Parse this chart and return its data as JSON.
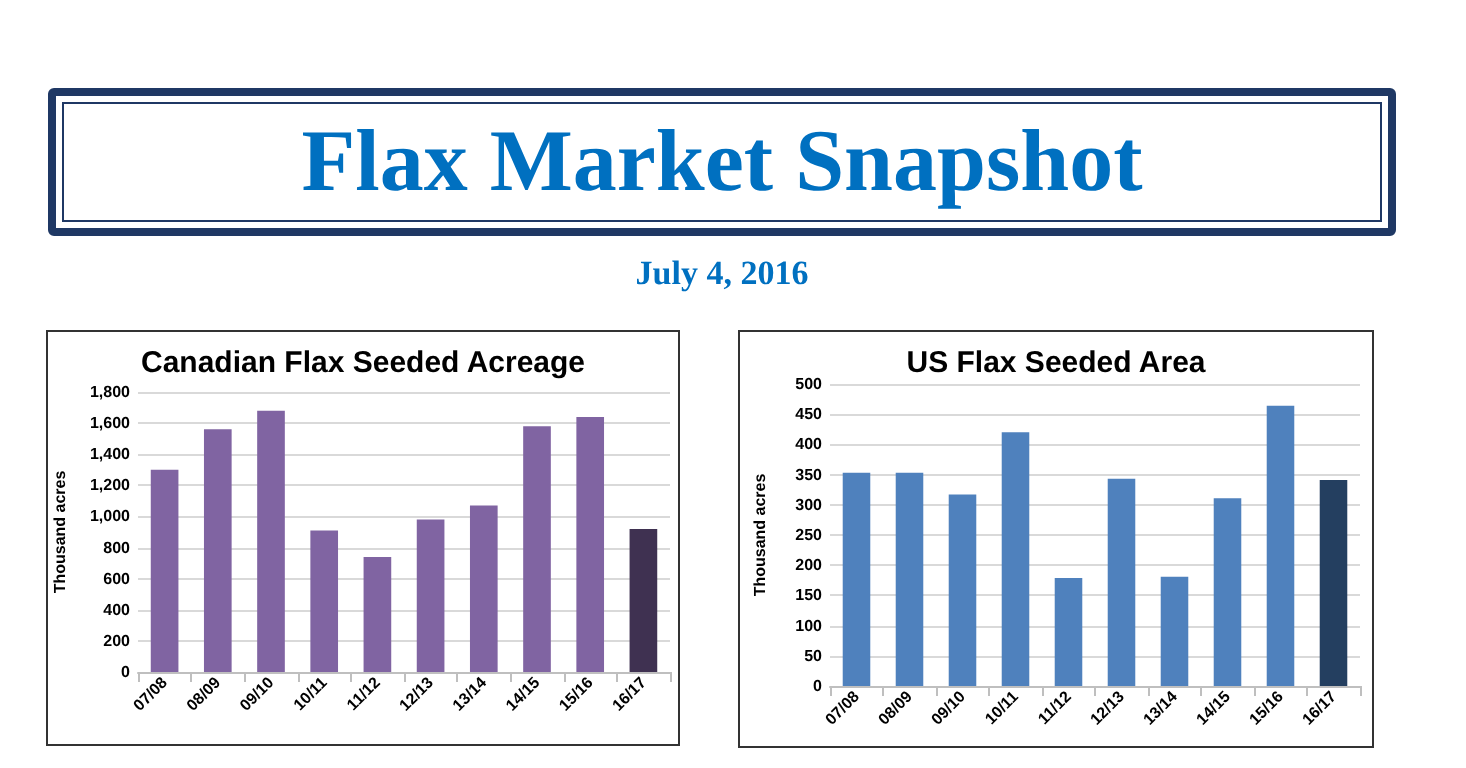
{
  "chart_data": [
    {
      "type": "other",
      "title": "Flax Market Snapshot",
      "subtitle": "July 4, 2016"
    },
    {
      "type": "bar",
      "title": "Canadian Flax Seeded Acreage",
      "ylabel": "Thousand acres",
      "categories": [
        "07/08",
        "08/09",
        "09/10",
        "10/11",
        "11/12",
        "12/13",
        "13/14",
        "14/15",
        "15/16",
        "16/17"
      ],
      "values": [
        1300,
        1560,
        1680,
        910,
        740,
        980,
        1070,
        1580,
        1640,
        920
      ],
      "colors": [
        "#8064a2",
        "#8064a2",
        "#8064a2",
        "#8064a2",
        "#8064a2",
        "#8064a2",
        "#8064a2",
        "#8064a2",
        "#8064a2",
        "#3f3151"
      ],
      "ylim": [
        0,
        1800
      ],
      "yticks": [
        0,
        200,
        400,
        600,
        800,
        {
          "value": 1000,
          "label": "1,000"
        },
        {
          "value": 1200,
          "label": "1,200"
        },
        {
          "value": 1400,
          "label": "1,400"
        },
        {
          "value": 1600,
          "label": "1,600"
        },
        {
          "value": 1800,
          "label": "1,800"
        }
      ],
      "grid": "y"
    },
    {
      "type": "bar",
      "title": "US Flax Seeded Area",
      "ylabel": "Thousand acres",
      "categories": [
        "07/08",
        "08/09",
        "09/10",
        "10/11",
        "11/12",
        "12/13",
        "13/14",
        "14/15",
        "15/16",
        "16/17"
      ],
      "values": [
        353,
        353,
        317,
        420,
        179,
        343,
        181,
        311,
        464,
        341
      ],
      "colors": [
        "#4f81bd",
        "#4f81bd",
        "#4f81bd",
        "#4f81bd",
        "#4f81bd",
        "#4f81bd",
        "#4f81bd",
        "#4f81bd",
        "#4f81bd",
        "#243f60"
      ],
      "ylim": [
        0,
        500
      ],
      "yticks": [
        0,
        50,
        100,
        150,
        200,
        250,
        300,
        350,
        400,
        450,
        500
      ],
      "grid": "y"
    }
  ]
}
